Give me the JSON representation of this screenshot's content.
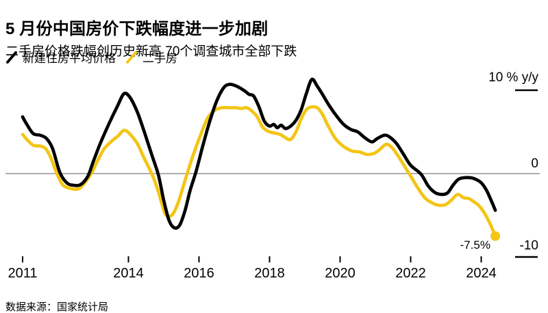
{
  "header": {
    "title": "5 月份中国房价下跌幅度进一步加剧",
    "subtitle": "二手房价格跌幅创历史新高 70个调查城市全部下跌"
  },
  "legend": {
    "items": [
      {
        "label": "新建住房平均价格",
        "color": "#000000",
        "swatch": "slash-icon"
      },
      {
        "label": "二手房",
        "color": "#F3C515",
        "swatch": "slash-icon"
      }
    ]
  },
  "footer": {
    "source": "数据来源：国家统计局"
  },
  "colors": {
    "new_home_line": "#000000",
    "secondhand_line": "#F3C515",
    "zero_line": "#7a7a7a",
    "tick": "#000000",
    "background": "#ffffff"
  },
  "chart_data": {
    "type": "line",
    "title": "5 月份中国房价下跌幅度进一步加剧",
    "subtitle": "二手房价格跌幅创历史新高 70个调查城市全部下跌",
    "unit": "% y/y",
    "grid": "zero-line-only",
    "y_axis": {
      "side": "right",
      "ticks": [
        10,
        0,
        -10
      ],
      "tick_labels": [
        "10 % y/y",
        "0",
        "-10"
      ],
      "range": [
        -10.5,
        12
      ]
    },
    "x_axis": {
      "ticks": [
        2011,
        2014,
        2016,
        2018,
        2020,
        2022,
        2024
      ],
      "tick_labels": [
        "2011",
        "2014",
        "2016",
        "2018",
        "2020",
        "2022",
        "2024"
      ],
      "range": [
        2011,
        2024.8
      ]
    },
    "annotation": {
      "text": "-7.5%",
      "series": "二手房",
      "x": 2024.4,
      "y": -7.5
    },
    "series": [
      {
        "name": "新建住房平均价格",
        "color": "#000000",
        "end_dot": false,
        "points": [
          [
            2011.0,
            6.8
          ],
          [
            2011.12,
            5.9
          ],
          [
            2011.3,
            4.8
          ],
          [
            2011.5,
            4.6
          ],
          [
            2011.68,
            4.2
          ],
          [
            2011.85,
            3.0
          ],
          [
            2012.05,
            0.2
          ],
          [
            2012.25,
            -1.1
          ],
          [
            2012.45,
            -1.4
          ],
          [
            2012.65,
            -1.3
          ],
          [
            2012.85,
            -0.3
          ],
          [
            2013.0,
            1.4
          ],
          [
            2013.2,
            3.6
          ],
          [
            2013.45,
            6.0
          ],
          [
            2013.7,
            8.2
          ],
          [
            2013.88,
            9.6
          ],
          [
            2014.05,
            9.1
          ],
          [
            2014.25,
            7.4
          ],
          [
            2014.45,
            5.0
          ],
          [
            2014.65,
            2.4
          ],
          [
            2014.85,
            -0.2
          ],
          [
            2015.0,
            -3.2
          ],
          [
            2015.15,
            -5.6
          ],
          [
            2015.3,
            -6.5
          ],
          [
            2015.45,
            -6.2
          ],
          [
            2015.6,
            -4.5
          ],
          [
            2015.75,
            -2.0
          ],
          [
            2015.92,
            0.3
          ],
          [
            2016.1,
            3.2
          ],
          [
            2016.3,
            6.2
          ],
          [
            2016.5,
            8.7
          ],
          [
            2016.7,
            10.3
          ],
          [
            2016.85,
            10.7
          ],
          [
            2017.0,
            10.6
          ],
          [
            2017.15,
            10.3
          ],
          [
            2017.3,
            9.9
          ],
          [
            2017.42,
            9.5
          ],
          [
            2017.55,
            9.3
          ],
          [
            2017.7,
            8.0
          ],
          [
            2017.85,
            6.3
          ],
          [
            2018.0,
            5.7
          ],
          [
            2018.12,
            5.9
          ],
          [
            2018.22,
            5.5
          ],
          [
            2018.33,
            5.8
          ],
          [
            2018.45,
            5.4
          ],
          [
            2018.6,
            5.7
          ],
          [
            2018.75,
            6.4
          ],
          [
            2018.9,
            7.7
          ],
          [
            2019.05,
            9.7
          ],
          [
            2019.2,
            11.3
          ],
          [
            2019.35,
            10.5
          ],
          [
            2019.5,
            9.5
          ],
          [
            2019.7,
            8.1
          ],
          [
            2019.9,
            6.9
          ],
          [
            2020.1,
            5.9
          ],
          [
            2020.3,
            5.3
          ],
          [
            2020.5,
            5.0
          ],
          [
            2020.7,
            4.3
          ],
          [
            2020.9,
            3.8
          ],
          [
            2021.05,
            4.2
          ],
          [
            2021.25,
            4.6
          ],
          [
            2021.4,
            4.4
          ],
          [
            2021.6,
            3.6
          ],
          [
            2021.8,
            2.3
          ],
          [
            2022.0,
            1.0
          ],
          [
            2022.3,
            -0.1
          ],
          [
            2022.5,
            -1.5
          ],
          [
            2022.7,
            -2.3
          ],
          [
            2022.9,
            -2.5
          ],
          [
            2023.05,
            -2.3
          ],
          [
            2023.2,
            -1.4
          ],
          [
            2023.35,
            -0.7
          ],
          [
            2023.5,
            -0.5
          ],
          [
            2023.7,
            -0.5
          ],
          [
            2023.85,
            -0.7
          ],
          [
            2024.0,
            -1.1
          ],
          [
            2024.15,
            -2.0
          ],
          [
            2024.28,
            -3.2
          ],
          [
            2024.4,
            -4.4
          ]
        ]
      },
      {
        "name": "二手房",
        "color": "#F3C515",
        "end_dot": true,
        "points": [
          [
            2011.0,
            4.7
          ],
          [
            2011.12,
            4.1
          ],
          [
            2011.3,
            3.4
          ],
          [
            2011.5,
            3.3
          ],
          [
            2011.65,
            3.0
          ],
          [
            2011.8,
            1.9
          ],
          [
            2011.97,
            0.0
          ],
          [
            2012.15,
            -1.4
          ],
          [
            2012.38,
            -1.8
          ],
          [
            2012.6,
            -1.8
          ],
          [
            2012.8,
            -0.9
          ],
          [
            2012.97,
            0.2
          ],
          [
            2013.12,
            1.5
          ],
          [
            2013.3,
            2.9
          ],
          [
            2013.5,
            3.8
          ],
          [
            2013.7,
            4.5
          ],
          [
            2013.88,
            5.2
          ],
          [
            2014.05,
            4.7
          ],
          [
            2014.25,
            3.6
          ],
          [
            2014.45,
            1.8
          ],
          [
            2014.68,
            -0.2
          ],
          [
            2014.85,
            -2.2
          ],
          [
            2015.0,
            -4.4
          ],
          [
            2015.1,
            -5.1
          ],
          [
            2015.25,
            -4.9
          ],
          [
            2015.4,
            -3.6
          ],
          [
            2015.55,
            -1.6
          ],
          [
            2015.68,
            0.2
          ],
          [
            2015.85,
            2.4
          ],
          [
            2016.05,
            4.7
          ],
          [
            2016.25,
            6.7
          ],
          [
            2016.45,
            7.6
          ],
          [
            2016.65,
            7.9
          ],
          [
            2016.85,
            7.9
          ],
          [
            2017.05,
            7.9
          ],
          [
            2017.2,
            7.8
          ],
          [
            2017.35,
            7.9
          ],
          [
            2017.5,
            7.5
          ],
          [
            2017.65,
            6.8
          ],
          [
            2017.8,
            5.6
          ],
          [
            2017.95,
            5.1
          ],
          [
            2018.1,
            4.9
          ],
          [
            2018.3,
            4.7
          ],
          [
            2018.45,
            4.3
          ],
          [
            2018.6,
            4.1
          ],
          [
            2018.75,
            5.0
          ],
          [
            2018.9,
            6.6
          ],
          [
            2019.05,
            7.7
          ],
          [
            2019.2,
            8.0
          ],
          [
            2019.35,
            7.9
          ],
          [
            2019.5,
            7.1
          ],
          [
            2019.65,
            5.8
          ],
          [
            2019.85,
            4.3
          ],
          [
            2020.0,
            3.6
          ],
          [
            2020.15,
            3.1
          ],
          [
            2020.35,
            2.7
          ],
          [
            2020.55,
            2.6
          ],
          [
            2020.75,
            2.3
          ],
          [
            2020.95,
            2.4
          ],
          [
            2021.1,
            2.8
          ],
          [
            2021.3,
            3.5
          ],
          [
            2021.45,
            3.2
          ],
          [
            2021.6,
            2.4
          ],
          [
            2021.78,
            1.2
          ],
          [
            2022.0,
            -0.3
          ],
          [
            2022.2,
            -1.7
          ],
          [
            2022.4,
            -2.9
          ],
          [
            2022.6,
            -3.5
          ],
          [
            2022.8,
            -3.8
          ],
          [
            2023.0,
            -3.7
          ],
          [
            2023.15,
            -3.2
          ],
          [
            2023.33,
            -2.5
          ],
          [
            2023.5,
            -2.9
          ],
          [
            2023.65,
            -3.0
          ],
          [
            2023.8,
            -3.4
          ],
          [
            2023.95,
            -3.9
          ],
          [
            2024.1,
            -4.8
          ],
          [
            2024.25,
            -6.0
          ],
          [
            2024.4,
            -7.5
          ]
        ]
      }
    ]
  }
}
